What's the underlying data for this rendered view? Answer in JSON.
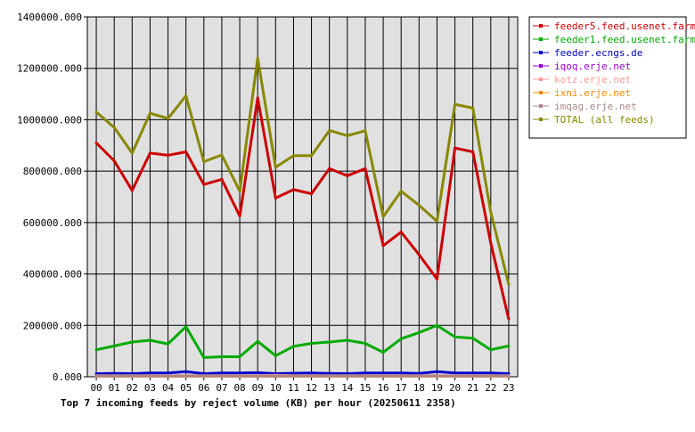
{
  "chart_data": {
    "type": "line",
    "title": "Top 7 incoming feeds by reject volume (KB) per hour (20250611 2358)",
    "categories": [
      "00",
      "01",
      "02",
      "03",
      "04",
      "05",
      "06",
      "07",
      "08",
      "09",
      "10",
      "11",
      "12",
      "13",
      "14",
      "15",
      "16",
      "17",
      "18",
      "19",
      "20",
      "21",
      "22",
      "23"
    ],
    "y_ticks": [
      "0.000",
      "200000.000",
      "400000.000",
      "600000.000",
      "800000.000",
      "1000000.000",
      "1200000.000",
      "1400000.000"
    ],
    "ylim": [
      0,
      1400000
    ],
    "grid": true,
    "legend_position": "top-right",
    "plot_background": "#e0e0e0",
    "series": [
      {
        "name": "feeder5.feed.usenet.farm",
        "color": "#cc0000",
        "values": [
          910000,
          840000,
          725000,
          870000,
          862000,
          875000,
          748000,
          768000,
          625000,
          1085000,
          695000,
          728000,
          712000,
          810000,
          782000,
          810000,
          510000,
          563000,
          475000,
          380000,
          890000,
          875000,
          520000,
          225000
        ]
      },
      {
        "name": "feeder1.feed.usenet.farm",
        "color": "#00aa00",
        "values": [
          105000,
          120000,
          135000,
          142000,
          128000,
          195000,
          75000,
          78000,
          78000,
          138000,
          82000,
          118000,
          130000,
          135000,
          142000,
          130000,
          95000,
          148000,
          172000,
          200000,
          155000,
          150000,
          105000,
          120000
        ]
      },
      {
        "name": "feeder.ecngs.de",
        "color": "#0000cc",
        "values": [
          12000,
          13000,
          12000,
          15000,
          15000,
          20000,
          12000,
          15000,
          15000,
          16000,
          12000,
          14000,
          15000,
          13000,
          12000,
          15000,
          15000,
          15000,
          13000,
          20000,
          15000,
          15000,
          15000,
          12000
        ]
      },
      {
        "name": "iqoq.erje.net",
        "color": "#9900cc",
        "values": [
          3000,
          3000,
          3000,
          3000,
          3000,
          3000,
          3000,
          3000,
          3000,
          3000,
          3000,
          3000,
          3000,
          3000,
          3000,
          3000,
          3000,
          3000,
          3000,
          3000,
          3000,
          3000,
          3000,
          3000
        ]
      },
      {
        "name": "kotz.erje.net",
        "color": "#ff9999",
        "values": [
          4000,
          4000,
          4000,
          4000,
          4000,
          4000,
          4000,
          4000,
          4000,
          5000,
          6000,
          4000,
          4000,
          4000,
          4000,
          4000,
          4000,
          4000,
          4000,
          4000,
          4000,
          4000,
          4000,
          4000
        ]
      },
      {
        "name": "ixni.erje.net",
        "color": "#ff8800",
        "values": [
          2000,
          2000,
          2000,
          2000,
          2000,
          2000,
          2000,
          2000,
          2000,
          2000,
          2000,
          2000,
          2000,
          2000,
          2000,
          2000,
          2000,
          2000,
          2000,
          2000,
          2000,
          2000,
          2000,
          2000
        ]
      },
      {
        "name": "imqag.erje.net",
        "color": "#aa8888",
        "values": [
          3000,
          3000,
          3000,
          3000,
          3000,
          3000,
          3000,
          3000,
          3000,
          3000,
          3000,
          3000,
          3000,
          3000,
          3000,
          3000,
          3000,
          3000,
          3000,
          3000,
          3000,
          3000,
          3000,
          3000
        ]
      },
      {
        "name": "TOTAL (all feeds)",
        "color": "#888800",
        "values": [
          1030000,
          970000,
          870000,
          1025000,
          1005000,
          1093000,
          837000,
          863000,
          722000,
          1240000,
          815000,
          860000,
          860000,
          958000,
          938000,
          957000,
          623000,
          722000,
          667000,
          605000,
          1060000,
          1045000,
          640000,
          360000
        ]
      }
    ]
  }
}
